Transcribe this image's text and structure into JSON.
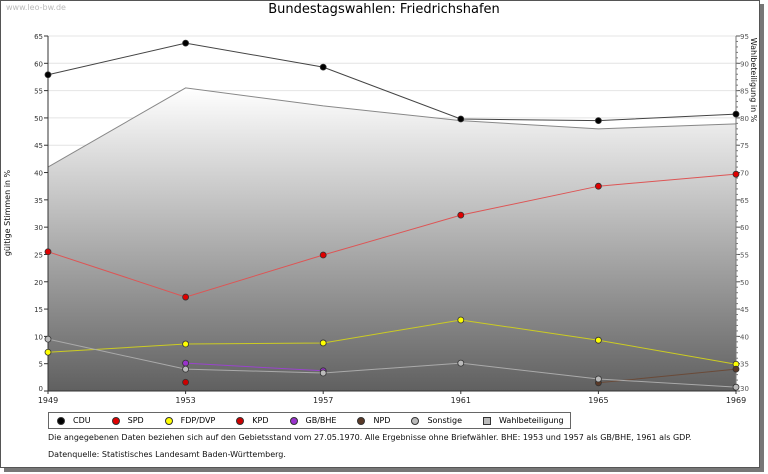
{
  "watermark": "www.leo-bw.de",
  "chart_data": {
    "type": "line",
    "title": "Bundestagswahlen: Friedrichshafen",
    "ylabel": "gültige Stimmen in %",
    "y2label": "Wahlbeteiligung in %",
    "x": [
      1949,
      1953,
      1957,
      1961,
      1965,
      1969
    ],
    "ylim": [
      0,
      65
    ],
    "y2lim": [
      30,
      95
    ],
    "yticks": [
      0,
      5,
      10,
      15,
      20,
      25,
      30,
      35,
      40,
      45,
      50,
      55,
      60,
      65
    ],
    "y2ticks": [
      30,
      35,
      40,
      45,
      50,
      55,
      60,
      65,
      70,
      75,
      80,
      85,
      90,
      95
    ],
    "grid": true,
    "legend_placement": "bottom",
    "series": [
      {
        "name": "CDU",
        "color": "#000000",
        "line": "#444444",
        "values": [
          57.9,
          63.7,
          59.3,
          49.8,
          49.5,
          50.7
        ]
      },
      {
        "name": "SPD",
        "color": "#e00000",
        "line": "#dd5555",
        "values": [
          25.5,
          17.2,
          24.9,
          32.2,
          37.5,
          39.7
        ]
      },
      {
        "name": "FDP/DVP",
        "color": "#ffff00",
        "line": "#cccc22",
        "values": [
          7.1,
          8.6,
          8.8,
          13.0,
          9.3,
          4.9
        ]
      },
      {
        "name": "KPD",
        "color": "#cc0000",
        "line": "#cc0000",
        "values": [
          null,
          1.6,
          null,
          null,
          null,
          null
        ]
      },
      {
        "name": "GB/BHE",
        "color": "#9933cc",
        "line": "#9944cc",
        "values": [
          null,
          5.1,
          3.7,
          null,
          null,
          null
        ]
      },
      {
        "name": "NPD",
        "color": "#5a3a28",
        "line": "#6a4a38",
        "values": [
          null,
          null,
          null,
          null,
          1.5,
          4.0
        ]
      },
      {
        "name": "Sonstige",
        "color": "#bbbbbb",
        "line": "#aaaaaa",
        "values": [
          9.5,
          4.0,
          3.3,
          5.1,
          2.2,
          0.7
        ]
      }
    ],
    "area_series": {
      "name": "Wahlbeteiligung",
      "axis": "right",
      "values": [
        71.0,
        85.5,
        82.2,
        79.5,
        78.0,
        78.9
      ]
    }
  },
  "notes": {
    "line1": "Die angegebenen Daten beziehen sich auf den Gebietsstand vom 27.05.1970. Alle Ergebnisse ohne Briefwähler. BHE: 1953 und 1957 als GB/BHE, 1961 als GDP.",
    "line2": "Datenquelle: Statistisches Landesamt Baden-Württemberg."
  }
}
